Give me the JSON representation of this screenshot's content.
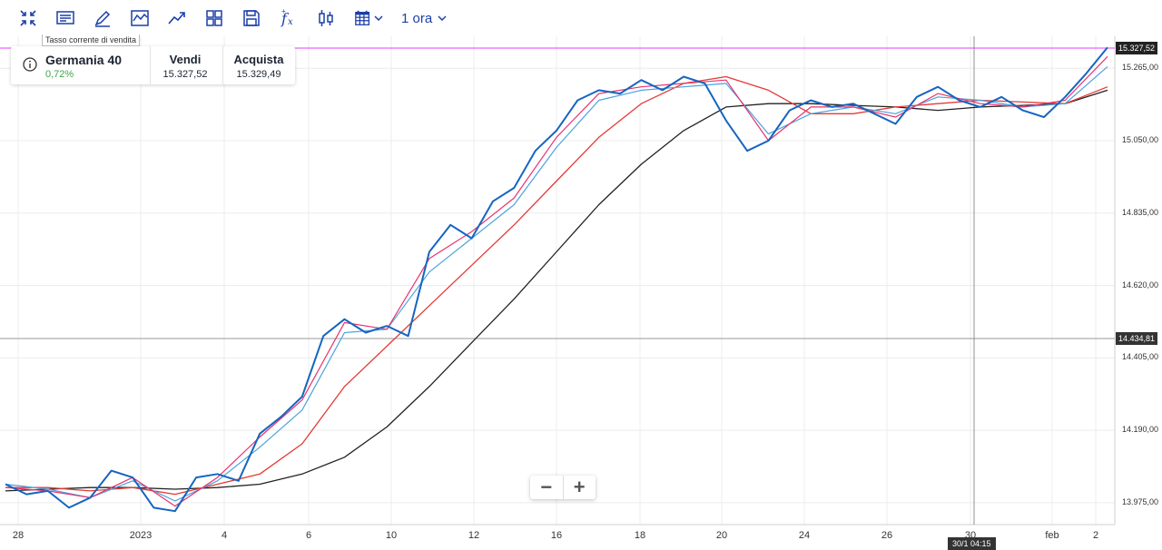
{
  "toolbar": {
    "tools": [
      {
        "name": "collapse-icon"
      },
      {
        "name": "news-icon"
      },
      {
        "name": "draw-icon"
      },
      {
        "name": "line-chart-type-icon"
      },
      {
        "name": "trend-icon"
      },
      {
        "name": "layout-grid-icon"
      },
      {
        "name": "save-icon"
      },
      {
        "name": "indicators-fx-icon"
      },
      {
        "name": "compare-candles-icon"
      },
      {
        "name": "calendar-icon"
      }
    ],
    "timeframe": "1 ora"
  },
  "info_card": {
    "tooltip": "Tasso corrente di vendita",
    "instrument": "Germania 40",
    "change": "0,72%",
    "sell_label": "Vendi",
    "sell_value": "15.327,52",
    "buy_label": "Acquista",
    "buy_value": "15.329,49"
  },
  "price_tags": {
    "current": "15.327,52",
    "crosshair": "14.434,81"
  },
  "time_tag": "30/1 04:15",
  "colors": {
    "price_line": "#1565c0",
    "ma_fast": "#e8336d",
    "ma_mid": "#4aa3df",
    "ma_red": "#e53935",
    "ma_black": "#222222",
    "current_line": "#e040fb"
  },
  "chart_data": {
    "type": "line",
    "y_ticks": [
      "15.265,00",
      "15.050,00",
      "14.835,00",
      "14.620,00",
      "14.405,00",
      "14.190,00",
      "13.975,00"
    ],
    "x_ticks": [
      "28",
      "2023",
      "4",
      "6",
      "10",
      "12",
      "16",
      "18",
      "20",
      "24",
      "26",
      "30",
      "feb",
      "2"
    ],
    "ylim": [
      13910,
      15360
    ],
    "series": [
      {
        "key": "price",
        "x": [
          0,
          0.5,
          1,
          1.5,
          2,
          2.5,
          3,
          3.5,
          4,
          4.5,
          5,
          5.5,
          6,
          6.5,
          7,
          7.5,
          8,
          8.5,
          9,
          9.5,
          10,
          10.5,
          11,
          11.5,
          12,
          12.5,
          13,
          13.5,
          14,
          14.5,
          15,
          15.5,
          16,
          16.5,
          17,
          17.5,
          18,
          18.5,
          19,
          19.5,
          20,
          20.5,
          21,
          21.5,
          22,
          22.5,
          23,
          23.5,
          24,
          24.5,
          25,
          25.5,
          26
        ],
        "values": [
          14030,
          14000,
          14010,
          13960,
          13990,
          14070,
          14050,
          13960,
          13950,
          14050,
          14060,
          14040,
          14180,
          14230,
          14290,
          14470,
          14520,
          14480,
          14500,
          14470,
          14720,
          14800,
          14760,
          14870,
          14910,
          15020,
          15080,
          15170,
          15200,
          15190,
          15230,
          15200,
          15240,
          15220,
          15110,
          15020,
          15050,
          15140,
          15170,
          15150,
          15160,
          15130,
          15100,
          15180,
          15210,
          15170,
          15150,
          15180,
          15140,
          15120,
          15180,
          15250,
          15327
        ]
      },
      {
        "key": "ma_fast",
        "x": [
          0,
          1,
          2,
          3,
          4,
          5,
          6,
          7,
          8,
          9,
          10,
          11,
          12,
          13,
          14,
          15,
          16,
          17,
          18,
          19,
          20,
          21,
          22,
          23,
          24,
          25,
          26
        ],
        "values": [
          14020,
          14010,
          13990,
          14050,
          13965,
          14050,
          14170,
          14280,
          14510,
          14490,
          14700,
          14780,
          14880,
          15060,
          15190,
          15210,
          15220,
          15230,
          15050,
          15150,
          15150,
          15120,
          15190,
          15160,
          15150,
          15170,
          15300
        ]
      },
      {
        "key": "ma_mid",
        "x": [
          0,
          1,
          2,
          3,
          4,
          5,
          6,
          7,
          8,
          9,
          10,
          11,
          12,
          13,
          14,
          15,
          16,
          17,
          18,
          19,
          20,
          21,
          22,
          23,
          24,
          25,
          26
        ],
        "values": [
          14030,
          14015,
          13990,
          14040,
          13980,
          14040,
          14140,
          14250,
          14480,
          14490,
          14660,
          14760,
          14860,
          15030,
          15170,
          15200,
          15210,
          15220,
          15070,
          15130,
          15150,
          15130,
          15180,
          15170,
          15150,
          15160,
          15270
        ]
      },
      {
        "key": "ma_red",
        "x": [
          0,
          1,
          2,
          3,
          4,
          5,
          6,
          7,
          8,
          9,
          10,
          11,
          12,
          13,
          14,
          15,
          16,
          17,
          18,
          19,
          20,
          21,
          22,
          23,
          24,
          25,
          26
        ],
        "values": [
          14020,
          14020,
          14010,
          14020,
          14000,
          14030,
          14060,
          14150,
          14320,
          14440,
          14560,
          14680,
          14800,
          14930,
          15060,
          15160,
          15220,
          15240,
          15200,
          15130,
          15130,
          15150,
          15160,
          15170,
          15165,
          15160,
          15210
        ]
      },
      {
        "key": "ma_black",
        "x": [
          0,
          1,
          2,
          3,
          4,
          5,
          6,
          7,
          8,
          9,
          10,
          11,
          12,
          13,
          14,
          15,
          16,
          17,
          18,
          19,
          20,
          21,
          22,
          23,
          24,
          25,
          26
        ],
        "values": [
          14010,
          14015,
          14020,
          14020,
          14015,
          14020,
          14030,
          14060,
          14110,
          14200,
          14320,
          14450,
          14580,
          14720,
          14860,
          14980,
          15080,
          15150,
          15160,
          15160,
          15155,
          15150,
          15140,
          15150,
          15155,
          15160,
          15200
        ]
      }
    ]
  }
}
